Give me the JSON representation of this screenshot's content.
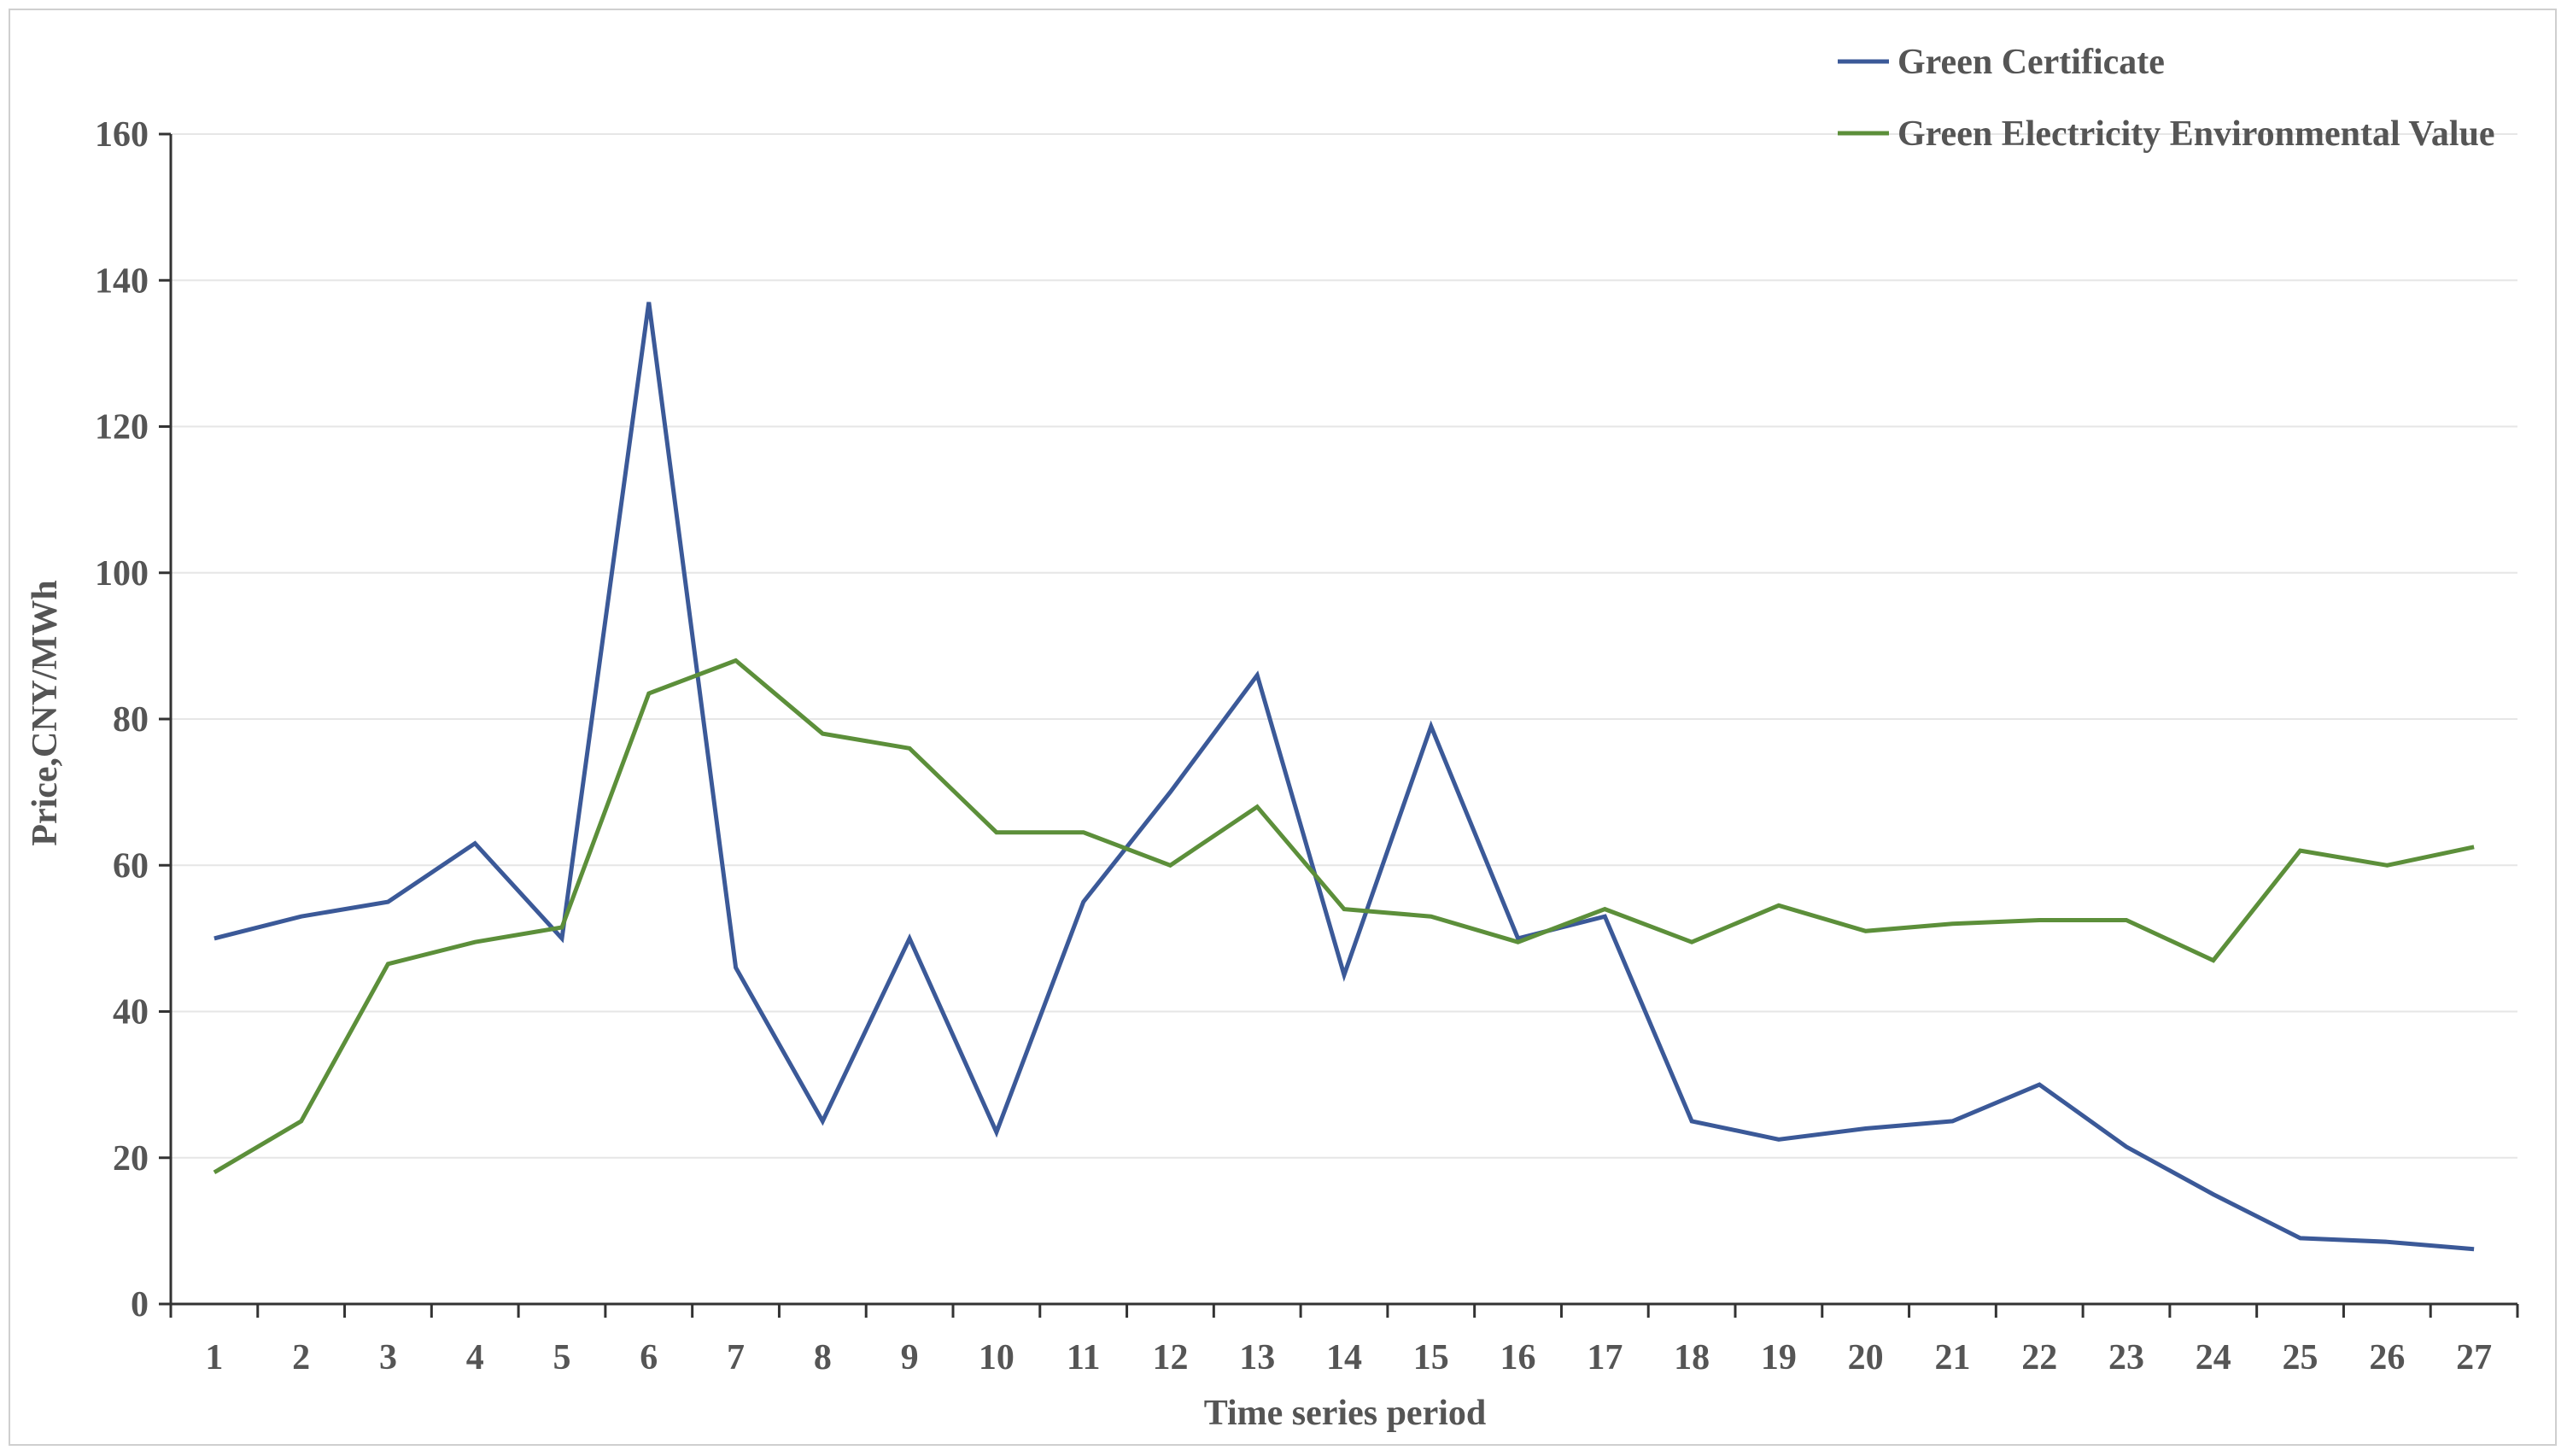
{
  "chart_data": {
    "type": "line",
    "title": "",
    "xlabel": "Time series period",
    "ylabel": "Price,CNY/MWh",
    "ylim": [
      0,
      160
    ],
    "yticks": [
      0,
      20,
      40,
      60,
      80,
      100,
      120,
      140,
      160
    ],
    "grid": "horizontal",
    "legend_position": "top-right",
    "categories": [
      "1",
      "2",
      "3",
      "4",
      "5",
      "6",
      "7",
      "8",
      "9",
      "10",
      "11",
      "12",
      "13",
      "14",
      "15",
      "16",
      "17",
      "18",
      "19",
      "20",
      "21",
      "22",
      "23",
      "24",
      "25",
      "26",
      "27"
    ],
    "series": [
      {
        "name": "Green Certificate",
        "color": "#3b5998",
        "values": [
          50,
          53,
          55,
          63,
          50,
          137,
          46,
          25,
          50,
          23.5,
          55,
          70,
          86,
          45,
          79,
          50,
          53,
          25,
          22.5,
          24,
          25,
          30,
          21.5,
          15,
          9,
          8.5,
          7.5
        ]
      },
      {
        "name": "Green Electricity Environmental Value",
        "color": "#5c8f3a",
        "values": [
          18,
          25,
          46.5,
          49.5,
          51.5,
          83.5,
          88,
          78,
          76,
          64.5,
          64.5,
          60,
          68,
          54,
          53,
          49.5,
          54,
          49.5,
          54.5,
          51,
          52,
          52.5,
          52.5,
          47,
          62,
          60,
          62.5
        ]
      }
    ]
  }
}
